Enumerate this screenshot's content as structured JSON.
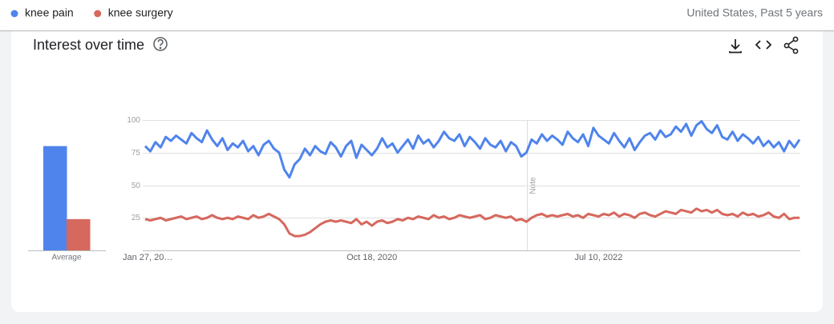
{
  "header": {
    "scope": "United States, Past 5 years"
  },
  "chart_data": {
    "type": "line",
    "title": "Interest over time",
    "average_label": "Average",
    "note": "Note",
    "categories": [
      "Jan 27, 20…",
      null,
      null,
      null,
      null,
      null,
      null,
      null,
      null,
      null,
      null,
      null,
      null,
      null,
      null,
      null,
      null,
      null,
      null,
      null,
      null,
      null,
      null,
      null,
      null,
      null,
      null,
      null,
      null,
      null,
      null,
      null,
      null,
      null,
      null,
      null,
      null,
      null,
      null,
      null,
      null,
      null,
      null,
      null,
      "Oct 18, 2020",
      null,
      null,
      null,
      null,
      null,
      null,
      null,
      null,
      null,
      null,
      null,
      null,
      null,
      null,
      null,
      null,
      null,
      null,
      null,
      null,
      null,
      null,
      null,
      null,
      null,
      null,
      null,
      null,
      null,
      null,
      null,
      null,
      null,
      null,
      null,
      null,
      null,
      null,
      null,
      null,
      null,
      null,
      null,
      "Jul 10, 2022",
      null,
      null,
      null,
      null,
      null,
      null,
      null,
      null,
      null,
      null,
      null,
      null,
      null,
      null,
      null,
      null,
      null,
      null,
      null,
      null,
      null,
      null,
      null,
      null,
      null,
      null,
      null,
      null,
      null,
      null,
      null,
      null,
      null,
      null,
      null,
      null,
      null,
      null,
      null
    ],
    "series": [
      {
        "name": "knee pain",
        "color": "#4f84ec",
        "average": 80,
        "values": [
          80,
          76,
          83,
          79,
          87,
          84,
          88,
          85,
          82,
          90,
          86,
          83,
          92,
          85,
          80,
          86,
          77,
          82,
          79,
          84,
          76,
          80,
          73,
          81,
          84,
          78,
          75,
          62,
          56,
          66,
          70,
          78,
          73,
          80,
          76,
          74,
          83,
          79,
          72,
          80,
          84,
          71,
          81,
          77,
          73,
          78,
          86,
          79,
          82,
          75,
          80,
          85,
          78,
          88,
          82,
          85,
          79,
          84,
          91,
          86,
          84,
          89,
          80,
          87,
          83,
          78,
          86,
          81,
          79,
          84,
          76,
          83,
          80,
          72,
          75,
          85,
          82,
          89,
          84,
          88,
          85,
          81,
          91,
          86,
          83,
          89,
          80,
          94,
          88,
          85,
          82,
          90,
          84,
          79,
          86,
          77,
          83,
          88,
          90,
          85,
          92,
          87,
          89,
          95,
          91,
          97,
          88,
          96,
          99,
          93,
          90,
          96,
          87,
          85,
          91,
          84,
          89,
          86,
          82,
          87,
          80,
          84,
          79,
          83,
          76,
          84,
          79,
          85
        ]
      },
      {
        "name": "knee surgery",
        "color": "#d6685e",
        "average": 24,
        "values": [
          24,
          23,
          24,
          25,
          23,
          24,
          25,
          26,
          24,
          25,
          26,
          24,
          25,
          27,
          25,
          24,
          25,
          24,
          26,
          25,
          24,
          27,
          25,
          26,
          28,
          26,
          24,
          20,
          13,
          11,
          11,
          12,
          14,
          17,
          20,
          22,
          23,
          22,
          23,
          22,
          21,
          24,
          20,
          22,
          19,
          22,
          23,
          21,
          22,
          24,
          23,
          25,
          24,
          26,
          25,
          24,
          27,
          25,
          26,
          24,
          25,
          27,
          26,
          25,
          26,
          27,
          24,
          25,
          27,
          26,
          25,
          26,
          23,
          24,
          22,
          25,
          27,
          28,
          26,
          27,
          26,
          27,
          28,
          26,
          27,
          25,
          28,
          27,
          26,
          28,
          27,
          29,
          26,
          28,
          27,
          25,
          28,
          29,
          27,
          26,
          28,
          30,
          29,
          28,
          31,
          30,
          29,
          32,
          30,
          31,
          29,
          31,
          28,
          27,
          28,
          26,
          29,
          27,
          28,
          26,
          27,
          29,
          26,
          25,
          28,
          24,
          25,
          25
        ]
      }
    ],
    "ylim": [
      0,
      100
    ],
    "yticks": [
      25,
      50,
      75,
      100
    ],
    "grid": true
  }
}
